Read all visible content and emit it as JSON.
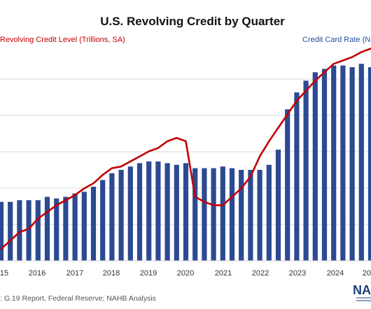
{
  "chart_data": {
    "type": "bar",
    "title": "U.S. Revolving Credit by Quarter",
    "legend_left": "Revolving Credit Level (Trillions, SA)",
    "legend_right": "Credit Card Rate (NSA",
    "source": ": G.19 Report, Federal Reserve; NAHB Analysis",
    "logo": "NAH",
    "x_tick_labels": [
      "15",
      "2016",
      "2017",
      "2018",
      "2019",
      "2020",
      "2021",
      "2022",
      "2023",
      "2024",
      "20"
    ],
    "grid": true,
    "colors": {
      "bars": "#2c4a92",
      "line": "#c00000"
    },
    "series": [
      {
        "name": "Credit Card Rate (NSA",
        "type": "bar",
        "values": [
          12.9,
          12.9,
          13.0,
          13.0,
          13.0,
          13.2,
          13.1,
          13.2,
          13.4,
          13.5,
          13.8,
          14.2,
          14.6,
          14.8,
          15.0,
          15.2,
          15.3,
          15.3,
          15.2,
          15.1,
          15.2,
          14.9,
          14.9,
          14.9,
          15.0,
          14.9,
          14.8,
          14.8,
          14.8,
          15.1,
          16.0,
          18.4,
          19.4,
          20.1,
          20.6,
          20.8,
          21.0,
          21.0,
          20.9,
          21.1,
          20.9,
          20.5
        ]
      },
      {
        "name": "Revolving Credit Level (Trillions, SA)",
        "type": "line",
        "values": [
          10.1,
          10.6,
          11.1,
          11.3,
          11.9,
          12.3,
          12.7,
          13.0,
          13.3,
          13.7,
          14.0,
          14.5,
          14.9,
          15.0,
          15.3,
          15.6,
          15.9,
          16.1,
          16.5,
          16.7,
          16.5,
          13.2,
          12.9,
          12.7,
          12.7,
          13.2,
          13.7,
          14.4,
          15.6,
          16.5,
          17.3,
          18.1,
          18.9,
          19.5,
          20.1,
          20.6,
          21.1,
          21.3,
          21.5,
          21.8,
          22.0,
          22.1
        ]
      }
    ],
    "ylim": [
      9.4,
      22.4
    ]
  }
}
